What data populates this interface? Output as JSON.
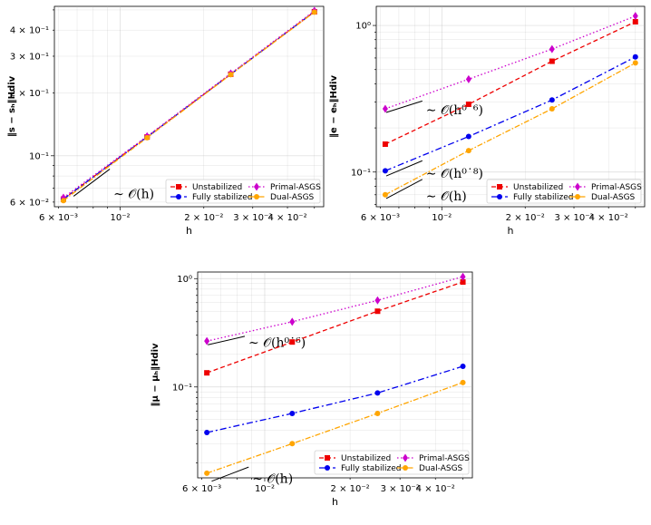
{
  "colors": {
    "Unstabilized": "#ee0000",
    "Fully stabilized": "#0000ee",
    "Primal-ASGS": "#cc00cc",
    "Dual-ASGS": "#ffa500"
  },
  "legend_order": [
    "Unstabilized",
    "Fully stabilized",
    "Primal-ASGS",
    "Dual-ASGS"
  ],
  "chart_data": [
    {
      "type": "line",
      "xscale": "log",
      "yscale": "log",
      "xlabel": "h",
      "ylabel": "‖s − sₕ‖Hdiv",
      "x": [
        0.00625,
        0.0125,
        0.025,
        0.05
      ],
      "xlim": [
        0.0058,
        0.054
      ],
      "ylim": [
        0.057,
        0.52
      ],
      "xticks": [
        {
          "value": 0.006,
          "label": "6 × 10⁻³"
        },
        {
          "value": 0.01,
          "label": "10⁻²"
        },
        {
          "value": 0.02,
          "label": "2 × 10⁻²"
        },
        {
          "value": 0.03,
          "label": "3 × 10⁻²"
        },
        {
          "value": 0.04,
          "label": "4 × 10⁻²"
        }
      ],
      "yticks": [
        {
          "value": 0.06,
          "label": "6 × 10⁻²"
        },
        {
          "value": 0.1,
          "label": "10⁻¹"
        },
        {
          "value": 0.2,
          "label": "2 × 10⁻¹"
        },
        {
          "value": 0.3,
          "label": "3 × 10⁻¹"
        },
        {
          "value": 0.4,
          "label": "4 × 10⁻¹"
        }
      ],
      "series": [
        {
          "name": "Unstabilized",
          "values": [
            0.062,
            0.123,
            0.246,
            0.49
          ]
        },
        {
          "name": "Fully stabilized",
          "values": [
            0.062,
            0.123,
            0.246,
            0.49
          ]
        },
        {
          "name": "Primal-ASGS",
          "values": [
            0.063,
            0.124,
            0.248,
            0.495
          ]
        },
        {
          "name": "Dual-ASGS",
          "values": [
            0.061,
            0.122,
            0.245,
            0.488
          ]
        }
      ],
      "annotations": [
        {
          "text": "∼ 𝒪(h)",
          "x": 0.0068,
          "y": 0.064,
          "slope": 1
        }
      ],
      "legend": "lower right"
    },
    {
      "type": "line",
      "xscale": "log",
      "yscale": "log",
      "xlabel": "h",
      "ylabel": "‖e − eₕ‖Hdiv",
      "x": [
        0.00625,
        0.0125,
        0.025,
        0.05
      ],
      "xlim": [
        0.0058,
        0.054
      ],
      "ylim": [
        0.058,
        1.35
      ],
      "xticks": [
        {
          "value": 0.006,
          "label": "6 × 10⁻³"
        },
        {
          "value": 0.01,
          "label": "10⁻²"
        },
        {
          "value": 0.02,
          "label": "2 × 10⁻²"
        },
        {
          "value": 0.03,
          "label": "3 × 10⁻²"
        },
        {
          "value": 0.04,
          "label": "4 × 10⁻²"
        }
      ],
      "yticks": [
        {
          "value": 0.1,
          "label": "10⁻¹"
        },
        {
          "value": 1,
          "label": "10⁰"
        }
      ],
      "series": [
        {
          "name": "Unstabilized",
          "values": [
            0.155,
            0.29,
            0.57,
            1.06
          ]
        },
        {
          "name": "Fully stabilized",
          "values": [
            0.102,
            0.175,
            0.31,
            0.61
          ]
        },
        {
          "name": "Primal-ASGS",
          "values": [
            0.27,
            0.43,
            0.69,
            1.16
          ]
        },
        {
          "name": "Dual-ASGS",
          "values": [
            0.07,
            0.14,
            0.27,
            0.555
          ]
        }
      ],
      "annotations": [
        {
          "text": "∼ 𝒪(h⁰˙⁶)",
          "x": 0.0063,
          "y": 0.255,
          "slope": 0.6
        },
        {
          "text": "∼ 𝒪(h⁰˙⁸)",
          "x": 0.0063,
          "y": 0.094,
          "slope": 0.8
        },
        {
          "text": "∼ 𝒪(h)",
          "x": 0.0063,
          "y": 0.066,
          "slope": 1
        }
      ],
      "legend": "lower right"
    },
    {
      "type": "line",
      "xscale": "log",
      "yscale": "log",
      "xlabel": "h",
      "ylabel": "‖μ − μₕ‖Hdiv",
      "x": [
        0.00625,
        0.0125,
        0.025,
        0.05
      ],
      "xlim": [
        0.0058,
        0.054
      ],
      "ylim": [
        0.0145,
        1.15
      ],
      "xticks": [
        {
          "value": 0.006,
          "label": "6 × 10⁻³"
        },
        {
          "value": 0.01,
          "label": "10⁻²"
        },
        {
          "value": 0.02,
          "label": "2 × 10⁻²"
        },
        {
          "value": 0.03,
          "label": "3 × 10⁻²"
        },
        {
          "value": 0.04,
          "label": "4 × 10⁻²"
        }
      ],
      "yticks": [
        {
          "value": 0.1,
          "label": "10⁻¹"
        },
        {
          "value": 1,
          "label": "10⁰"
        }
      ],
      "series": [
        {
          "name": "Unstabilized",
          "values": [
            0.135,
            0.26,
            0.5,
            0.93
          ]
        },
        {
          "name": "Fully stabilized",
          "values": [
            0.038,
            0.057,
            0.088,
            0.155
          ]
        },
        {
          "name": "Primal-ASGS",
          "values": [
            0.265,
            0.4,
            0.63,
            1.04
          ]
        },
        {
          "name": "Dual-ASGS",
          "values": [
            0.016,
            0.03,
            0.057,
            0.11
          ]
        }
      ],
      "annotations": [
        {
          "text": "∼ 𝒪(h⁰˙⁶)",
          "x": 0.0063,
          "y": 0.245,
          "slope": 0.6
        },
        {
          "text": "∼ 𝒪(h)",
          "x": 0.0065,
          "y": 0.0135,
          "slope": 1
        }
      ],
      "legend": "lower right"
    }
  ]
}
